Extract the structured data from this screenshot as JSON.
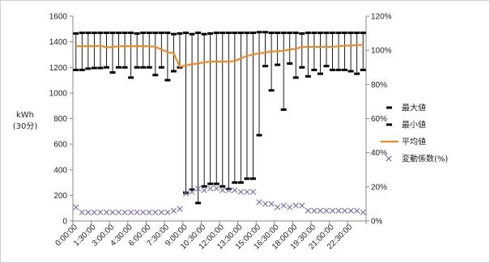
{
  "chart_data": {
    "type": "line",
    "title": "",
    "ylabel": [
      "kWh",
      "(30分)"
    ],
    "y_left_range": [
      0,
      1600
    ],
    "y_left_ticks": [
      0,
      200,
      400,
      600,
      800,
      1000,
      1200,
      1400,
      1600
    ],
    "y_right_range": [
      0,
      1.2
    ],
    "y_right_ticks": [
      "0%",
      "20%",
      "40%",
      "60%",
      "80%",
      "100%",
      "120%"
    ],
    "legend_position": "right",
    "x_tick_labels": [
      "0:00:00",
      "1:30:00",
      "3:00:00",
      "4:30:00",
      "6:00:00",
      "7:30:00",
      "9:00:00",
      "10:30:00",
      "12:00:00",
      "13:30:00",
      "15:00:00",
      "16:30:00",
      "18:00:00",
      "19:30:00",
      "21:00:00",
      "22:30:00"
    ],
    "x": [
      "0:00:00",
      "0:30:00",
      "1:00:00",
      "1:30:00",
      "2:00:00",
      "2:30:00",
      "3:00:00",
      "3:30:00",
      "4:00:00",
      "4:30:00",
      "5:00:00",
      "5:30:00",
      "6:00:00",
      "6:30:00",
      "7:00:00",
      "7:30:00",
      "8:00:00",
      "8:30:00",
      "9:00:00",
      "9:30:00",
      "10:00:00",
      "10:30:00",
      "11:00:00",
      "11:30:00",
      "12:00:00",
      "12:30:00",
      "13:00:00",
      "13:30:00",
      "14:00:00",
      "14:30:00",
      "15:00:00",
      "15:30:00",
      "16:00:00",
      "16:30:00",
      "17:00:00",
      "17:30:00",
      "18:00:00",
      "18:30:00",
      "19:00:00",
      "19:30:00",
      "20:00:00",
      "20:30:00",
      "21:00:00",
      "21:30:00",
      "22:00:00",
      "22:30:00",
      "23:00:00",
      "23:30:00"
    ],
    "series": [
      {
        "name": "最大値",
        "axis": "left",
        "color": "#000000",
        "values": [
          1465,
          1470,
          1470,
          1470,
          1470,
          1470,
          1470,
          1470,
          1470,
          1470,
          1465,
          1470,
          1470,
          1470,
          1470,
          1470,
          1460,
          1465,
          1470,
          1460,
          1470,
          1460,
          1465,
          1470,
          1470,
          1470,
          1470,
          1470,
          1470,
          1470,
          1475,
          1475,
          1470,
          1470,
          1470,
          1470,
          1470,
          1465,
          1470,
          1470,
          1470,
          1470,
          1470,
          1470,
          1470,
          1470,
          1470,
          1470
        ]
      },
      {
        "name": "最小値",
        "axis": "left",
        "color": "#000000",
        "values": [
          1180,
          1180,
          1190,
          1195,
          1195,
          1200,
          1160,
          1200,
          1200,
          1120,
          1200,
          1200,
          1200,
          1140,
          1200,
          1100,
          1170,
          1200,
          220,
          245,
          140,
          270,
          290,
          290,
          270,
          250,
          300,
          300,
          330,
          330,
          670,
          1210,
          1020,
          1220,
          870,
          1230,
          1120,
          1200,
          1130,
          1180,
          1150,
          1210,
          1180,
          1180,
          1180,
          1170,
          1150,
          1180
        ]
      },
      {
        "name": "平均値",
        "axis": "left",
        "color": "#F08A24",
        "values": [
          1365,
          1365,
          1365,
          1365,
          1370,
          1355,
          1360,
          1365,
          1365,
          1365,
          1365,
          1365,
          1365,
          1360,
          1340,
          1320,
          1310,
          1205,
          1215,
          1225,
          1230,
          1240,
          1245,
          1245,
          1245,
          1245,
          1250,
          1270,
          1290,
          1300,
          1310,
          1315,
          1325,
          1325,
          1330,
          1340,
          1345,
          1360,
          1360,
          1360,
          1360,
          1360,
          1360,
          1365,
          1370,
          1370,
          1375,
          1375
        ]
      },
      {
        "name": "変動係数(%)",
        "axis": "right",
        "color": "#7B68B0",
        "values": [
          0.08,
          0.05,
          0.05,
          0.05,
          0.05,
          0.05,
          0.05,
          0.05,
          0.05,
          0.05,
          0.05,
          0.05,
          0.05,
          0.05,
          0.05,
          0.05,
          0.06,
          0.07,
          0.16,
          0.17,
          0.19,
          0.18,
          0.19,
          0.19,
          0.18,
          0.18,
          0.18,
          0.17,
          0.17,
          0.17,
          0.11,
          0.1,
          0.1,
          0.08,
          0.09,
          0.08,
          0.09,
          0.09,
          0.06,
          0.06,
          0.06,
          0.06,
          0.06,
          0.06,
          0.06,
          0.06,
          0.06,
          0.05
        ]
      }
    ]
  }
}
